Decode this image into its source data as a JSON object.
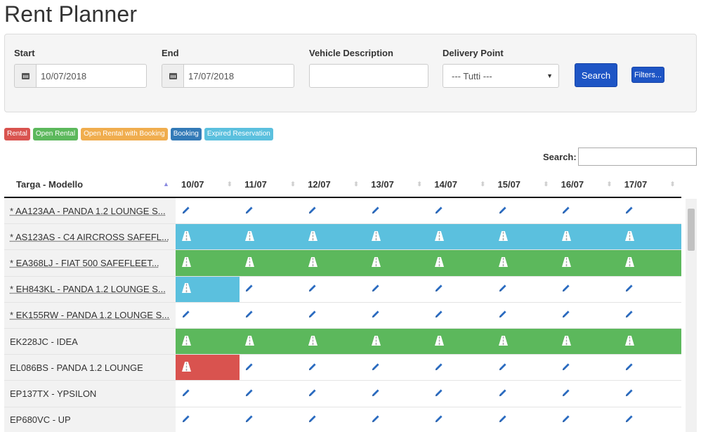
{
  "title": "Rent Planner",
  "filters": {
    "start_label": "Start",
    "start_value": "10/07/2018",
    "end_label": "End",
    "end_value": "17/07/2018",
    "vehicle_label": "Vehicle Description",
    "vehicle_value": "",
    "delivery_label": "Delivery Point",
    "delivery_value": "--- Tutti ---",
    "search_button": "Search",
    "filters_button": "Filters..."
  },
  "legend": [
    "Rental",
    "Open Rental",
    "Open Rental with Booking",
    "Booking",
    "Expired Reservation"
  ],
  "table_search_label": "Search:",
  "columns": {
    "vehicle": "Targa - Modello",
    "dates": [
      "10/07",
      "11/07",
      "12/07",
      "13/07",
      "14/07",
      "15/07",
      "16/07",
      "17/07"
    ]
  },
  "rows": [
    {
      "name": "* AA123AA - PANDA 1.2 LOUNGE S...",
      "link": true,
      "cells": [
        "edit",
        "edit",
        "edit",
        "edit",
        "edit",
        "edit",
        "edit",
        "edit"
      ]
    },
    {
      "name": "* AS123AS - C4 AIRCROSS SAFEFL...",
      "link": true,
      "cells": [
        "expired",
        "expired",
        "expired",
        "expired",
        "expired",
        "expired",
        "expired",
        "expired"
      ]
    },
    {
      "name": "* EA368LJ - FIAT 500 SAFEFLEET...",
      "link": true,
      "cells": [
        "open",
        "open",
        "open",
        "open",
        "open",
        "open",
        "open",
        "open"
      ]
    },
    {
      "name": "* EH843KL - PANDA 1.2 LOUNGE S...",
      "link": true,
      "cells": [
        "expired",
        "edit",
        "edit",
        "edit",
        "edit",
        "edit",
        "edit",
        "edit"
      ]
    },
    {
      "name": "* EK155RW - PANDA 1.2 LOUNGE S...",
      "link": true,
      "cells": [
        "edit",
        "edit",
        "edit",
        "edit",
        "edit",
        "edit",
        "edit",
        "edit"
      ]
    },
    {
      "name": "EK228JC - IDEA",
      "link": false,
      "cells": [
        "open",
        "open",
        "open",
        "open",
        "open",
        "open",
        "open",
        "open"
      ]
    },
    {
      "name": "EL086BS - PANDA 1.2 LOUNGE",
      "link": false,
      "cells": [
        "rental",
        "edit",
        "edit",
        "edit",
        "edit",
        "edit",
        "edit",
        "edit"
      ]
    },
    {
      "name": "EP137TX - YPSILON",
      "link": false,
      "cells": [
        "edit",
        "edit",
        "edit",
        "edit",
        "edit",
        "edit",
        "edit",
        "edit"
      ]
    },
    {
      "name": "EP680VC - UP",
      "link": false,
      "cells": [
        "edit",
        "edit",
        "edit",
        "edit",
        "edit",
        "edit",
        "edit",
        "edit"
      ]
    }
  ],
  "colors": {
    "rental": "#d9534f",
    "open": "#5cb85c",
    "open_booking": "#f0ad4e",
    "booking": "#337ab7",
    "expired": "#5bc0de",
    "icon_pencil": "#2a6bc0"
  }
}
